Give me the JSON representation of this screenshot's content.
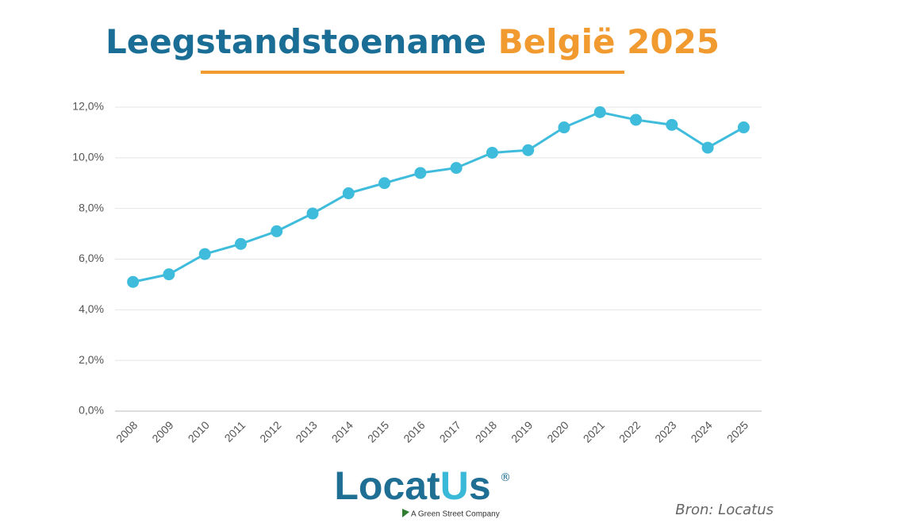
{
  "chart_data": {
    "type": "line",
    "title": "Leegstandstoename",
    "title_accent": "België 2025",
    "categories": [
      "2008",
      "2009",
      "2010",
      "2011",
      "2012",
      "2013",
      "2014",
      "2015",
      "2016",
      "2017",
      "2018",
      "2019",
      "2020",
      "2021",
      "2022",
      "2023",
      "2024",
      "2025"
    ],
    "values": [
      5.1,
      5.4,
      6.2,
      6.6,
      7.1,
      7.8,
      8.6,
      9.0,
      9.4,
      9.6,
      10.2,
      10.3,
      11.2,
      11.8,
      11.5,
      11.3,
      10.4,
      11.2
    ],
    "color": "#3fbcdc",
    "ylim": [
      0,
      12
    ],
    "yticks": [
      {
        "value": 0,
        "label": "0,0%"
      },
      {
        "value": 2,
        "label": "2,0%"
      },
      {
        "value": 4,
        "label": "4,0%"
      },
      {
        "value": 6,
        "label": "6,0%"
      },
      {
        "value": 8,
        "label": "8,0%"
      },
      {
        "value": 10,
        "label": "10,0%"
      },
      {
        "value": 12,
        "label": "12,0%"
      }
    ],
    "grid": true
  },
  "branding": {
    "logo": [
      "Locat",
      "U",
      "s"
    ],
    "logo_mark": "®",
    "tagline": "A Green Street Company",
    "source": "Bron: Locatus"
  }
}
